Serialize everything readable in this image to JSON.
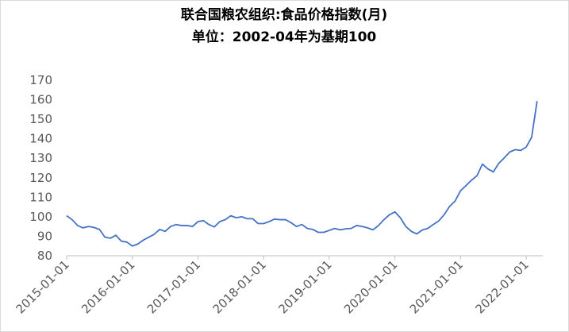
{
  "chart_data": {
    "type": "line",
    "title": "联合国粮农组织:食品价格指数(月)",
    "subtitle": "单位：2002-04年为基期100",
    "x": [
      "2015-01-01",
      "2015-02-01",
      "2015-03-01",
      "2015-04-01",
      "2015-05-01",
      "2015-06-01",
      "2015-07-01",
      "2015-08-01",
      "2015-09-01",
      "2015-10-01",
      "2015-11-01",
      "2015-12-01",
      "2016-01-01",
      "2016-02-01",
      "2016-03-01",
      "2016-04-01",
      "2016-05-01",
      "2016-06-01",
      "2016-07-01",
      "2016-08-01",
      "2016-09-01",
      "2016-10-01",
      "2016-11-01",
      "2016-12-01",
      "2017-01-01",
      "2017-02-01",
      "2017-03-01",
      "2017-04-01",
      "2017-05-01",
      "2017-06-01",
      "2017-07-01",
      "2017-08-01",
      "2017-09-01",
      "2017-10-01",
      "2017-11-01",
      "2017-12-01",
      "2018-01-01",
      "2018-02-01",
      "2018-03-01",
      "2018-04-01",
      "2018-05-01",
      "2018-06-01",
      "2018-07-01",
      "2018-08-01",
      "2018-09-01",
      "2018-10-01",
      "2018-11-01",
      "2018-12-01",
      "2019-01-01",
      "2019-02-01",
      "2019-03-01",
      "2019-04-01",
      "2019-05-01",
      "2019-06-01",
      "2019-07-01",
      "2019-08-01",
      "2019-09-01",
      "2019-10-01",
      "2019-11-01",
      "2019-12-01",
      "2020-01-01",
      "2020-02-01",
      "2020-03-01",
      "2020-04-01",
      "2020-05-01",
      "2020-06-01",
      "2020-07-01",
      "2020-08-01",
      "2020-09-01",
      "2020-10-01",
      "2020-11-01",
      "2020-12-01",
      "2021-01-01",
      "2021-02-01",
      "2021-03-01",
      "2021-04-01",
      "2021-05-01",
      "2021-06-01",
      "2021-07-01",
      "2021-08-01",
      "2021-09-01",
      "2021-10-01",
      "2021-11-01",
      "2021-12-01",
      "2022-01-01",
      "2022-02-01",
      "2022-03-01"
    ],
    "series": [
      {
        "name": "食品价格指数",
        "color": "#4472c4",
        "values": [
          100.5,
          98.5,
          95.5,
          94.3,
          95,
          94.5,
          93.5,
          89.5,
          89,
          90.5,
          87.5,
          87,
          85,
          86,
          88,
          89.5,
          91,
          93.5,
          92.5,
          95,
          96,
          95.5,
          95.5,
          95,
          97.5,
          98,
          96,
          94.8,
          97.5,
          98.5,
          100.5,
          99.5,
          100,
          99,
          99,
          96.5,
          96.5,
          97.5,
          98.8,
          98.5,
          98.5,
          97,
          95,
          96,
          94,
          93.5,
          92,
          92,
          93,
          94,
          93.3,
          93.8,
          94,
          95.5,
          95,
          94.3,
          93.3,
          95.5,
          98.5,
          101,
          102.5,
          99.5,
          95,
          92.5,
          91.2,
          93.2,
          94,
          96,
          97.8,
          101,
          105.3,
          108,
          113.3,
          116,
          118.7,
          121,
          127,
          124.5,
          123,
          127.4,
          130.2,
          133.2,
          134.4,
          134,
          135.7,
          140.7,
          159.3
        ]
      }
    ],
    "xticks": [
      "2015-01-01",
      "2016-01-01",
      "2017-01-01",
      "2018-01-01",
      "2019-01-01",
      "2020-01-01",
      "2021-01-01",
      "2022-01-01"
    ],
    "ylim": [
      80,
      170
    ],
    "yticks": [
      80,
      90,
      100,
      110,
      120,
      130,
      140,
      150,
      160,
      170
    ]
  }
}
